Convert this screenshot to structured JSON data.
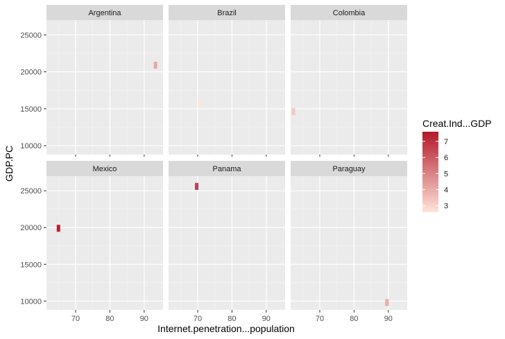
{
  "chart_data": {
    "type": "heatmap",
    "facet_layout": "3 columns x 2 rows",
    "xlabel": "Internet.penetration...population",
    "ylabel": "GDP.PC",
    "x_ticks": [
      70,
      80,
      90
    ],
    "y_ticks": [
      10000,
      15000,
      20000,
      25000
    ],
    "xlim": [
      61.5,
      95.5
    ],
    "ylim": [
      8800,
      27000
    ],
    "legend": {
      "title": "Creat.Ind...GDP",
      "placement": "right",
      "ticks": [
        3,
        4,
        5,
        6,
        7
      ],
      "range": [
        2.6,
        7.6
      ],
      "color_low": "#fee5d9",
      "color_high": "#b2182b"
    },
    "panels": [
      {
        "name": "Argentina",
        "points": [
          {
            "x": 93.3,
            "y": 20900,
            "value": 4.1
          }
        ]
      },
      {
        "name": "Brazil",
        "points": [
          {
            "x": 70.7,
            "y": 15800,
            "value": 2.6
          }
        ]
      },
      {
        "name": "Colombia",
        "points": [
          {
            "x": 62.3,
            "y": 14600,
            "value": 3.3
          }
        ]
      },
      {
        "name": "Mexico",
        "points": [
          {
            "x": 65.0,
            "y": 19900,
            "value": 7.4
          }
        ]
      },
      {
        "name": "Panama",
        "points": [
          {
            "x": 69.7,
            "y": 25600,
            "value": 6.6
          }
        ]
      },
      {
        "name": "Paraguay",
        "points": [
          {
            "x": 89.6,
            "y": 9800,
            "value": 4.0
          }
        ]
      }
    ]
  }
}
